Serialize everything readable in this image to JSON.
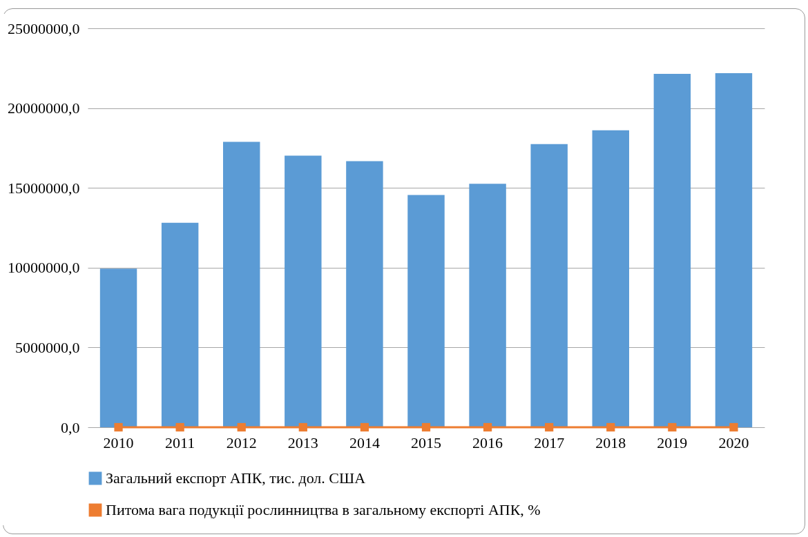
{
  "chart_data": {
    "type": "bar",
    "categories": [
      "2010",
      "2011",
      "2012",
      "2013",
      "2014",
      "2015",
      "2016",
      "2017",
      "2018",
      "2019",
      "2020"
    ],
    "series": [
      {
        "name": "Загальний експорт АПК, тис. дол. США",
        "color": "#5b9bd5",
        "values": [
          9940000,
          12810000,
          17880000,
          17020000,
          16670000,
          14550000,
          15260000,
          17740000,
          18610000,
          22150000,
          22190000
        ]
      },
      {
        "name": "Питома вага подукції рослинництва в загальному експорті АПК, %",
        "type": "line",
        "color": "#ed7d31",
        "marker": "square",
        "values": [
          0,
          0,
          0,
          0,
          0,
          0,
          0,
          0,
          0,
          0,
          0
        ]
      }
    ],
    "ylim": [
      0,
      25000000
    ],
    "yticks": [
      {
        "value": 0,
        "label": "0,0"
      },
      {
        "value": 5000000,
        "label": "5000000,0"
      },
      {
        "value": 10000000,
        "label": "10000000,0"
      },
      {
        "value": 15000000,
        "label": "15000000,0"
      },
      {
        "value": 20000000,
        "label": "20000000,0"
      },
      {
        "value": 25000000,
        "label": "25000000,0"
      }
    ],
    "grid": "y",
    "legend": "bottom"
  }
}
